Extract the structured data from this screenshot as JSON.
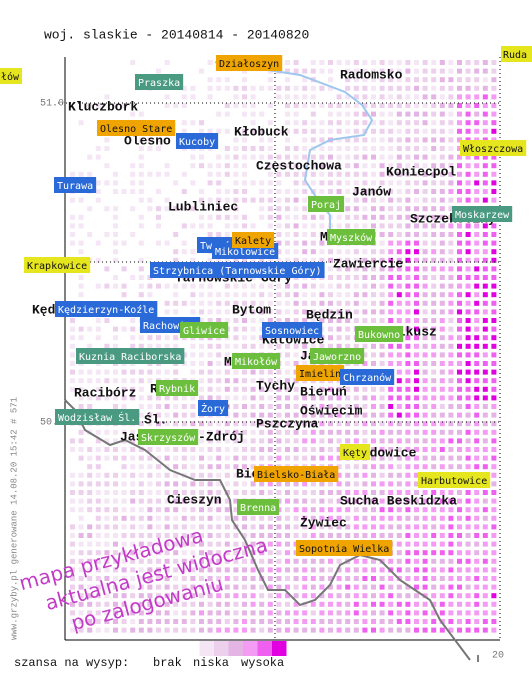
{
  "header": {
    "title": "woj. slaskie - 20140814 - 20140820"
  },
  "axes": {
    "lat_top": "51.0",
    "lat_bottom": "50.0",
    "lon_right": "20",
    "edge_right": "Ruda",
    "edge_left": "łów"
  },
  "towns": [
    "Radomsko",
    "Kluczbork",
    "Olesno",
    "Kłobuck",
    "Częstochowa",
    "Koniecpol",
    "Janów",
    "Lubliniec",
    "Szczekociny",
    "Myszków",
    "Zawiercie",
    "Tarnowskie Góry",
    "Kędzierzyn-Koźle",
    "Bytom",
    "Będzin",
    "Olkusz",
    "Katowice",
    "Mikołów",
    "Jaworzno",
    "Tychy",
    "Bieruń",
    "Racibórz",
    "Rybnik",
    "Żory",
    "Oświęcim",
    "Wodzisław Śl.",
    "Jastrzębie-Zdrój",
    "Pszczyna",
    "Wadowice",
    "Bielsko-Biała",
    "Cieszyn",
    "Sucha Beskidzka",
    "Żywiec"
  ],
  "places": [
    {
      "name": "Działoszyn",
      "color": "#f0a400"
    },
    {
      "name": "Praszka",
      "color": "#4a9a82"
    },
    {
      "name": "Olesno Stare",
      "color": "#f0a400"
    },
    {
      "name": "Kucoby",
      "color": "#2a6ad8"
    },
    {
      "name": "Włoszczowa",
      "color": "#e6e61e"
    },
    {
      "name": "Turawa",
      "color": "#2a6ad8"
    },
    {
      "name": "Poraj",
      "color": "#6cbf3c"
    },
    {
      "name": "Moskarzew",
      "color": "#4a9a82"
    },
    {
      "name": "Tworóg",
      "color": "#2a6ad8"
    },
    {
      "name": "Mikolowice",
      "color": "#2a6ad8"
    },
    {
      "name": "Kalety",
      "color": "#f0a400"
    },
    {
      "name": "Krapkowice",
      "color": "#e6e61e"
    },
    {
      "name": "Myszków",
      "color": "#6cbf3c"
    },
    {
      "name": "Strzybnica (Tarnowskie Góry)",
      "color": "#2a6ad8"
    },
    {
      "name": "Kędzierzyn-Koźle",
      "color": "#2a6ad8"
    },
    {
      "name": "Rachowice",
      "color": "#2a6ad8"
    },
    {
      "name": "Gliwice",
      "color": "#6cbf3c"
    },
    {
      "name": "Sosnowiec",
      "color": "#2a6ad8"
    },
    {
      "name": "Bukowno",
      "color": "#6cbf3c"
    },
    {
      "name": "Kuznia Raciborska",
      "color": "#4a9a82"
    },
    {
      "name": "Mikołów",
      "color": "#6cbf3c"
    },
    {
      "name": "Jaworzno",
      "color": "#6cbf3c"
    },
    {
      "name": "Imielin",
      "color": "#f0a400"
    },
    {
      "name": "Chrzanów",
      "color": "#2a6ad8"
    },
    {
      "name": "Rybnik",
      "color": "#6cbf3c"
    },
    {
      "name": "Żory",
      "color": "#2a6ad8"
    },
    {
      "name": "Wodzisław Śl.",
      "color": "#4a9a82"
    },
    {
      "name": "Skrzyszów",
      "color": "#6cbf3c"
    },
    {
      "name": "Kęty",
      "color": "#e6e61e"
    },
    {
      "name": "Bielsko-Biała",
      "color": "#f0a400"
    },
    {
      "name": "Harbutowice",
      "color": "#e6e61e"
    },
    {
      "name": "Brenna",
      "color": "#6cbf3c"
    },
    {
      "name": "Sopotnia Wielka",
      "color": "#f0a400"
    }
  ],
  "watermark": [
    "mapa przykładowa",
    "aktualna jest widoczna",
    "po zalogowaniu"
  ],
  "side_note": "www.grzyby.pl generowane 14.08.20 15:42 # 571",
  "legend": {
    "label": "szansa na wysyp:",
    "low": "brak",
    "mid": "niska",
    "high": "wysoka",
    "colors": [
      "#ffffff",
      "#f4e6f4",
      "#ecd0ec",
      "#e4b4e4",
      "#f49cf4",
      "#f060f0",
      "#e000e0"
    ]
  }
}
